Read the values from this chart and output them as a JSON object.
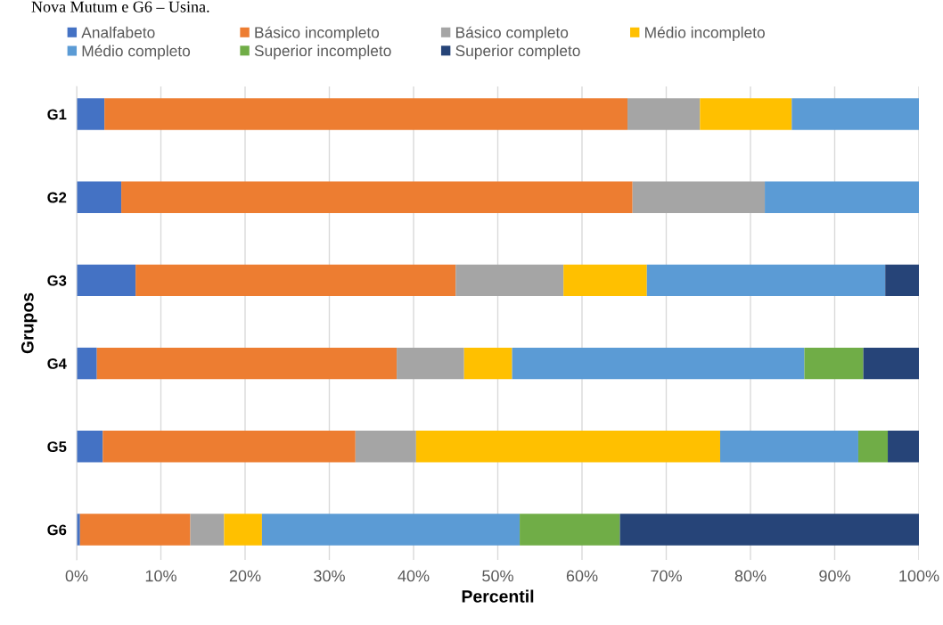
{
  "chart_data": {
    "type": "bar",
    "orientation": "horizontal",
    "stacked": true,
    "annotations": [
      "Nova Mutum e G6 – Usina."
    ],
    "xlabel": "Percentil",
    "ylabel": "Grupos",
    "categories": [
      "G1",
      "G2",
      "G3",
      "G4",
      "G5",
      "G6"
    ],
    "series": [
      {
        "name": "Analfabeto",
        "color": "#4472c4",
        "values": [
          3.3,
          5.3,
          7.0,
          2.4,
          3.1,
          0.4
        ]
      },
      {
        "name": "Básico incompleto",
        "color": "#ed7d31",
        "values": [
          62.1,
          60.7,
          38.0,
          35.6,
          30.0,
          13.1
        ]
      },
      {
        "name": "Básico completo",
        "color": "#a5a5a5",
        "values": [
          8.6,
          15.7,
          12.8,
          8.0,
          7.2,
          4.0
        ]
      },
      {
        "name": "Médio incompleto",
        "color": "#ffc000",
        "values": [
          10.9,
          0,
          9.9,
          5.7,
          36.1,
          4.5
        ]
      },
      {
        "name": "Médio completo",
        "color": "#5b9bd5",
        "values": [
          15.1,
          18.3,
          28.3,
          34.7,
          16.4,
          30.6
        ]
      },
      {
        "name": "Superior incompleto",
        "color": "#70ad47",
        "values": [
          0,
          0,
          0,
          7.0,
          3.5,
          11.9
        ]
      },
      {
        "name": "Superior completo",
        "color": "#264478",
        "values": [
          0,
          0,
          4.0,
          6.6,
          3.7,
          35.5
        ]
      }
    ],
    "xlim": [
      0,
      100
    ],
    "xticks": [
      {
        "value": 0,
        "label": "0%"
      },
      {
        "value": 10,
        "label": "10%"
      },
      {
        "value": 20,
        "label": "20%"
      },
      {
        "value": 30,
        "label": "30%"
      },
      {
        "value": 40,
        "label": "40%"
      },
      {
        "value": 50,
        "label": "50%"
      },
      {
        "value": 60,
        "label": "60%"
      },
      {
        "value": 70,
        "label": "70%"
      },
      {
        "value": 80,
        "label": "80%"
      },
      {
        "value": 90,
        "label": "90%"
      },
      {
        "value": 100,
        "label": "100%"
      }
    ],
    "grid": "x",
    "legend": "top"
  }
}
